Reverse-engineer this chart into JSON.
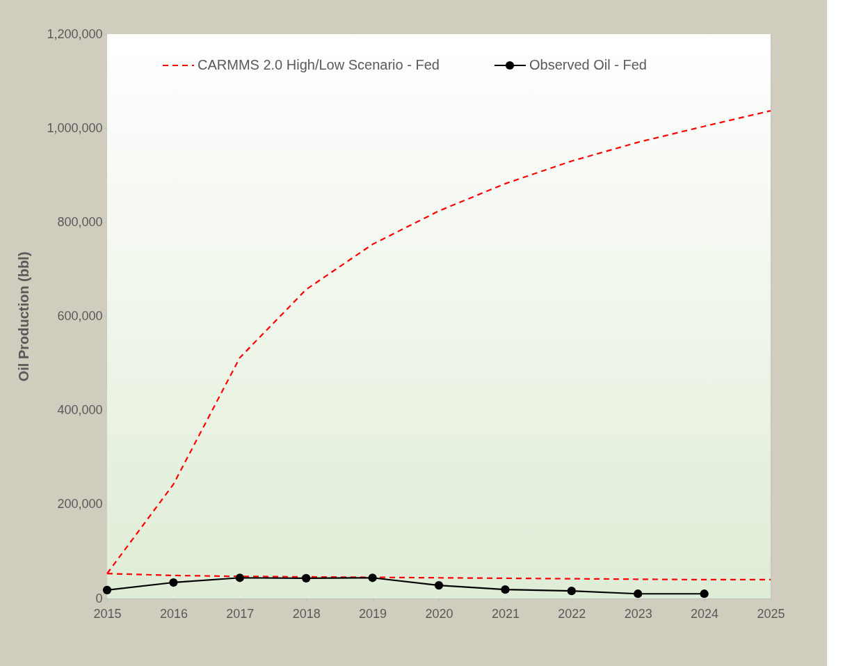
{
  "chart_data": {
    "type": "line",
    "ylabel": "Oil Production (bbl)",
    "x": [
      2015,
      2016,
      2017,
      2018,
      2019,
      2020,
      2021,
      2022,
      2023,
      2024,
      2025
    ],
    "xlim": [
      2015,
      2025
    ],
    "xticks": [
      2015,
      2016,
      2017,
      2018,
      2019,
      2020,
      2021,
      2022,
      2023,
      2024,
      2025
    ],
    "ylim": [
      0,
      1200000
    ],
    "yticks": [
      {
        "value": 0,
        "label": "0"
      },
      {
        "value": 200000,
        "label": "200,000"
      },
      {
        "value": 400000,
        "label": "400,000"
      },
      {
        "value": 600000,
        "label": "600,000"
      },
      {
        "value": 800000,
        "label": "800,000"
      },
      {
        "value": 1000000,
        "label": "1,000,000"
      },
      {
        "value": 1200000,
        "label": "1,200,000"
      }
    ],
    "grid": "y",
    "legend": "top",
    "series": [
      {
        "name": "CARMMS 2.0 High/Low Scenario - Fed",
        "color": "#ff0000",
        "line_style": "dashed",
        "marker": "none",
        "values": [
          53000,
          243000,
          512000,
          657000,
          753000,
          824000,
          882000,
          930000,
          970000,
          1004000,
          1037000
        ]
      },
      {
        "color": "#ff0000",
        "line_style": "dashed",
        "marker": "none",
        "values": [
          53000,
          49000,
          47000,
          46000,
          45000,
          44000,
          43000,
          42000,
          41000,
          40000,
          40000
        ]
      },
      {
        "name": "Observed Oil - Fed",
        "color": "#000000",
        "line_style": "solid",
        "marker": "circle",
        "values": [
          18000,
          34000,
          44000,
          43000,
          44000,
          28000,
          19000,
          16000,
          10000,
          10000,
          null
        ]
      }
    ]
  }
}
